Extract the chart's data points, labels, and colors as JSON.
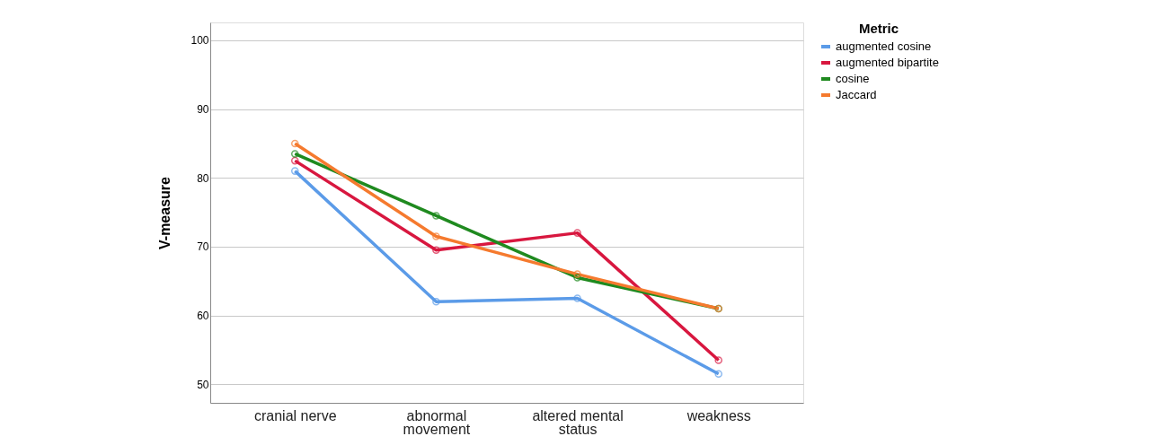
{
  "chart_data": {
    "type": "line",
    "ylabel": "V-measure",
    "legend_title": "Metric",
    "categories": [
      "cranial nerve",
      "abnormal movement",
      "altered mental status",
      "weakness"
    ],
    "series": [
      {
        "name": "augmented cosine",
        "color": "#5b9be8",
        "values": [
          81,
          62,
          62.5,
          51.5
        ]
      },
      {
        "name": "augmented bipartite",
        "color": "#d8173f",
        "values": [
          82.5,
          69.5,
          72,
          53.5
        ]
      },
      {
        "name": "cosine",
        "color": "#1f8a1f",
        "values": [
          83.5,
          74.5,
          65.5,
          61
        ]
      },
      {
        "name": "Jaccard",
        "color": "#f57a2e",
        "values": [
          85,
          71.5,
          66,
          61
        ]
      }
    ],
    "ylim": [
      47.3,
      102.6
    ],
    "yticks": [
      50,
      60,
      70,
      80,
      90,
      100
    ],
    "grid": "y",
    "legend": "top right",
    "marker": "circle",
    "line_style": "solid"
  }
}
